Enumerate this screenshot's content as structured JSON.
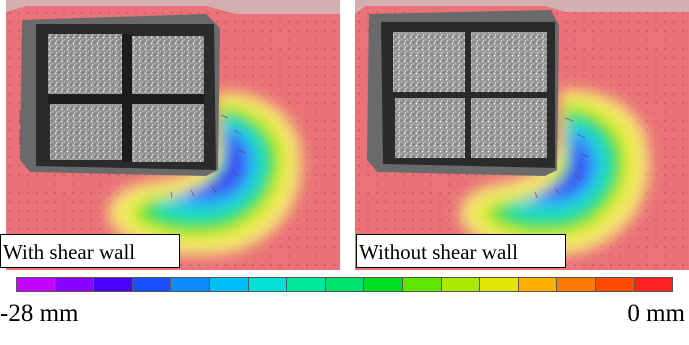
{
  "figure": {
    "panels": [
      {
        "caption": "With shear wall"
      },
      {
        "caption": "Without shear wall"
      }
    ],
    "colorbar": {
      "min_label": "-28 mm",
      "max_label": "0 mm",
      "colors": [
        "#c400ff",
        "#8a00ff",
        "#4b00ff",
        "#1650ff",
        "#0a8cff",
        "#00bfff",
        "#00dfd8",
        "#00e89a",
        "#00e36a",
        "#00de22",
        "#5ee600",
        "#a9ea00",
        "#e3e600",
        "#ffb000",
        "#ff7a00",
        "#ff4a00",
        "#ff2020"
      ]
    }
  }
}
